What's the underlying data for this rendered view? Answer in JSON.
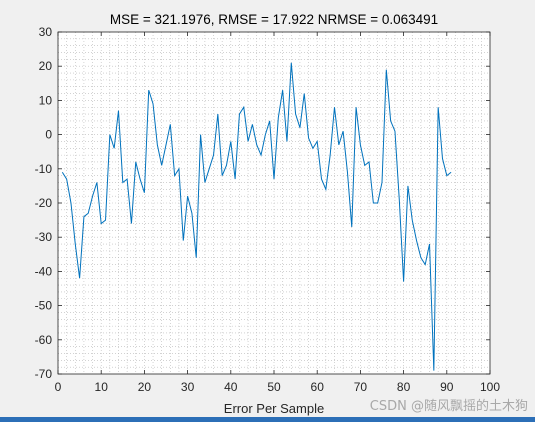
{
  "watermark": "CSDN @随风飘摇的土木狗",
  "chart_data": {
    "type": "line",
    "title": "MSE = 321.1976, RMSE = 17.922 NRMSE = 0.063491",
    "xlabel": "Error Per Sample",
    "ylabel": "",
    "xlim": [
      0,
      100
    ],
    "ylim": [
      -70,
      30
    ],
    "xticks": [
      0,
      10,
      20,
      30,
      40,
      50,
      60,
      70,
      80,
      90,
      100
    ],
    "yticks": [
      30,
      20,
      10,
      0,
      -10,
      -20,
      -30,
      -40,
      -50,
      -60,
      -70
    ],
    "grid": "minor-dotted",
    "line_color": "#0072bd",
    "series": [
      {
        "x": [
          1,
          2,
          3,
          4,
          5,
          6,
          7,
          8,
          9,
          10,
          11,
          12,
          13,
          14,
          15,
          16,
          17,
          18,
          19,
          20,
          21,
          22,
          23,
          24,
          25,
          26,
          27,
          28,
          29,
          30,
          31,
          32,
          33,
          34,
          35,
          36,
          37,
          38,
          39,
          40,
          41,
          42,
          43,
          44,
          45,
          46,
          47,
          48,
          49,
          50,
          51,
          52,
          53,
          54,
          55,
          56,
          57,
          58,
          59,
          60,
          61,
          62,
          63,
          64,
          65,
          66,
          67,
          68,
          69,
          70,
          71,
          72,
          73,
          74,
          75,
          76,
          77,
          78,
          79,
          80,
          81,
          82,
          83,
          84,
          85,
          86,
          87,
          88,
          89,
          90,
          91
        ],
        "values": [
          -11,
          -13,
          -20,
          -32,
          -42,
          -24,
          -23,
          -18,
          -14,
          -26,
          -25,
          0,
          -4,
          7,
          -14,
          -13,
          -26,
          -8,
          -13,
          -17,
          13,
          9,
          -3,
          -9,
          -3,
          3,
          -12,
          -10,
          -31,
          -18,
          -23,
          -36,
          0,
          -14,
          -10,
          -6,
          6,
          -12,
          -9,
          -2,
          -13,
          6,
          8,
          -2,
          3,
          -3,
          -6,
          0,
          4,
          -13,
          5,
          13,
          -2,
          21,
          6,
          2,
          12,
          -1,
          -4,
          -2,
          -13,
          -16,
          -6,
          8,
          -3,
          1,
          -11,
          -27,
          8,
          -3,
          -9,
          -8,
          -20,
          -20,
          -14,
          19,
          4,
          1,
          -19,
          -43,
          -15,
          -25,
          -31,
          -36,
          -38,
          -32,
          -69,
          8,
          -7,
          -12,
          -11
        ]
      }
    ]
  }
}
